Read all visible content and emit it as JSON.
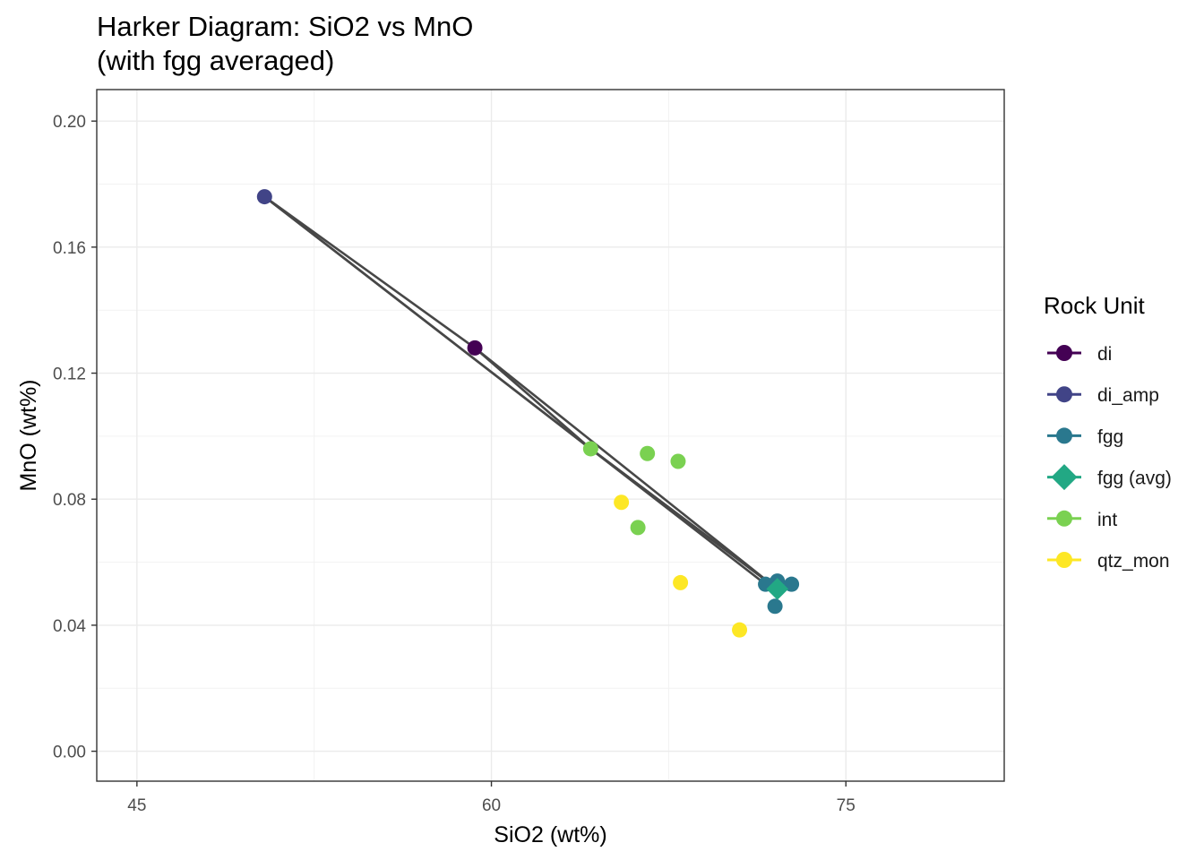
{
  "chart_data": {
    "type": "scatter",
    "title": "Harker Diagram: SiO2 vs MnO",
    "subtitle": "(with fgg averaged)",
    "xlabel": "SiO2 (wt%)",
    "ylabel": "MnO (wt%)",
    "xlim": [
      43.3,
      81.7
    ],
    "ylim": [
      -0.0095,
      0.21
    ],
    "x_ticks": [
      45,
      60,
      75
    ],
    "x_tick_labels": [
      "45",
      "60",
      "75"
    ],
    "x_minor_ticks": [
      52.5,
      67.5
    ],
    "y_ticks": [
      0.0,
      0.04,
      0.08,
      0.12,
      0.16,
      0.2
    ],
    "y_tick_labels": [
      "0.00",
      "0.04",
      "0.08",
      "0.12",
      "0.16",
      "0.20"
    ],
    "y_minor_ticks": [
      0.02,
      0.06,
      0.1,
      0.14,
      0.18
    ],
    "grid": true,
    "legend_title": "Rock Unit",
    "legend_position": "right",
    "series": [
      {
        "name": "di",
        "color": "#440154",
        "marker": "circle",
        "points": [
          [
            59.3,
            0.128
          ]
        ]
      },
      {
        "name": "di_amp",
        "color": "#414487",
        "marker": "circle",
        "points": [
          [
            50.4,
            0.176
          ]
        ]
      },
      {
        "name": "fgg",
        "color": "#2A788E",
        "marker": "circle",
        "points": [
          [
            71.6,
            0.053
          ],
          [
            72.1,
            0.054
          ],
          [
            72.7,
            0.053
          ],
          [
            72.0,
            0.046
          ]
        ]
      },
      {
        "name": "fgg (avg)",
        "color": "#22A884",
        "marker": "diamond",
        "points": [
          [
            72.1,
            0.0515
          ]
        ]
      },
      {
        "name": "int",
        "color": "#7AD151",
        "marker": "circle",
        "points": [
          [
            64.2,
            0.096
          ],
          [
            66.6,
            0.0945
          ],
          [
            67.9,
            0.092
          ],
          [
            66.2,
            0.071
          ]
        ]
      },
      {
        "name": "qtz_mon",
        "color": "#FDE725",
        "marker": "circle",
        "points": [
          [
            65.5,
            0.079
          ],
          [
            68.0,
            0.0535
          ],
          [
            70.5,
            0.0385
          ]
        ]
      }
    ],
    "connector_lines": [
      {
        "color": "#474747",
        "points": [
          [
            50.4,
            0.176
          ],
          [
            64.2,
            0.096
          ],
          [
            72.1,
            0.0515
          ]
        ]
      },
      {
        "color": "#474747",
        "points": [
          [
            50.4,
            0.176
          ],
          [
            59.3,
            0.128
          ],
          [
            72.1,
            0.0515
          ]
        ]
      },
      {
        "color": "#474747",
        "points": [
          [
            50.4,
            0.176
          ],
          [
            71.6,
            0.053
          ]
        ]
      },
      {
        "color": "#474747",
        "points": [
          [
            59.3,
            0.128
          ],
          [
            64.2,
            0.096
          ],
          [
            72.1,
            0.0515
          ]
        ]
      }
    ]
  }
}
